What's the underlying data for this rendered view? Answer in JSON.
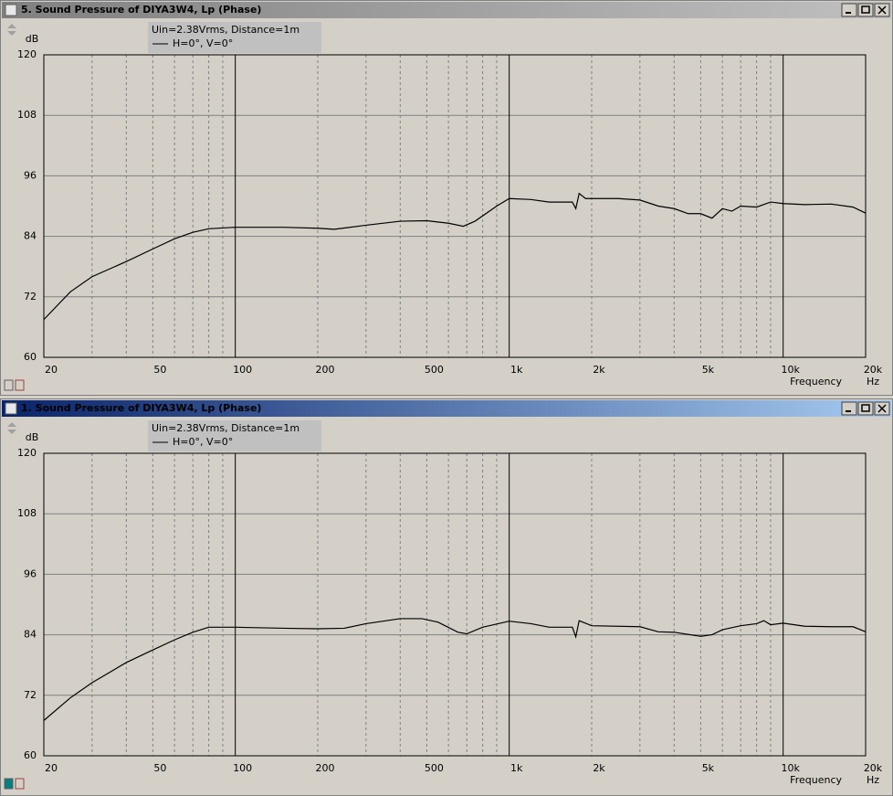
{
  "chart_data": [
    {
      "type": "line",
      "title": "5. Sound Pressure of DIYA3W4, Lp (Phase)",
      "active": false,
      "annotation": "Uin=2.38Vrms, Distance=1m",
      "y_label": "dB",
      "x_label": "Frequency",
      "x_unit": "Hz",
      "x_scale": "log",
      "grid": true,
      "xlim": [
        20,
        20000
      ],
      "ylim": [
        60,
        120
      ],
      "yticks": [
        60,
        72,
        84,
        96,
        108,
        120
      ],
      "xticks": [
        20,
        50,
        100,
        200,
        500,
        {
          "value": 1000,
          "label": "1k"
        },
        {
          "value": 2000,
          "label": "2k"
        },
        {
          "value": 5000,
          "label": "5k"
        },
        {
          "value": 10000,
          "label": "10k"
        },
        {
          "value": 20000,
          "label": "20k"
        }
      ],
      "xgrid": [
        30,
        40,
        60,
        70,
        80,
        90,
        300,
        400,
        600,
        700,
        800,
        900,
        3000,
        4000,
        6000,
        7000,
        8000,
        9000
      ],
      "x": [
        20,
        25,
        30,
        40,
        50,
        60,
        70,
        80,
        100,
        150,
        200,
        230,
        300,
        400,
        500,
        600,
        680,
        750,
        900,
        1000,
        1200,
        1400,
        1700,
        1750,
        1800,
        1900,
        2500,
        3000,
        3500,
        4000,
        4500,
        5000,
        5500,
        6000,
        6500,
        7000,
        8000,
        9000,
        10000,
        12000,
        15000,
        18000,
        20000
      ],
      "series": [
        {
          "name": "H=0°, V=0°",
          "color": "#000000",
          "values": [
            67.5,
            73,
            76,
            79,
            81.5,
            83.5,
            84.8,
            85.5,
            85.8,
            85.8,
            85.6,
            85.4,
            86.2,
            87,
            87.1,
            86.6,
            86,
            87,
            90,
            91.5,
            91.3,
            90.8,
            90.8,
            89.5,
            92.5,
            91.5,
            91.5,
            91.2,
            90,
            89.5,
            88.5,
            88.5,
            87.6,
            89.5,
            89,
            90,
            89.8,
            90.8,
            90.5,
            90.3,
            90.4,
            89.8,
            88.6
          ]
        }
      ]
    },
    {
      "type": "line",
      "title": "1. Sound Pressure of DIYA3W4, Lp (Phase)",
      "active": true,
      "annotation": "Uin=2.38Vrms, Distance=1m",
      "y_label": "dB",
      "x_label": "Frequency",
      "x_unit": "Hz",
      "x_scale": "log",
      "grid": true,
      "xlim": [
        20,
        20000
      ],
      "ylim": [
        60,
        120
      ],
      "yticks": [
        60,
        72,
        84,
        96,
        108,
        120
      ],
      "xticks": [
        20,
        50,
        100,
        200,
        500,
        {
          "value": 1000,
          "label": "1k"
        },
        {
          "value": 2000,
          "label": "2k"
        },
        {
          "value": 5000,
          "label": "5k"
        },
        {
          "value": 10000,
          "label": "10k"
        },
        {
          "value": 20000,
          "label": "20k"
        }
      ],
      "xgrid": [
        30,
        40,
        60,
        70,
        80,
        90,
        300,
        400,
        600,
        700,
        800,
        900,
        3000,
        4000,
        6000,
        7000,
        8000,
        9000
      ],
      "x": [
        20,
        25,
        30,
        40,
        50,
        60,
        70,
        80,
        100,
        150,
        200,
        250,
        300,
        400,
        480,
        550,
        650,
        700,
        800,
        1000,
        1200,
        1400,
        1700,
        1750,
        1800,
        2000,
        3000,
        3500,
        4000,
        5000,
        5500,
        6000,
        7000,
        8000,
        8500,
        9000,
        10000,
        12000,
        15000,
        18000,
        20000
      ],
      "series": [
        {
          "name": "H=0°, V=0°",
          "color": "#000000",
          "values": [
            67,
            71.5,
            74.5,
            78.5,
            81,
            83,
            84.5,
            85.5,
            85.5,
            85.3,
            85.2,
            85.3,
            86.2,
            87.2,
            87.2,
            86.5,
            84.5,
            84.2,
            85.5,
            86.7,
            86.2,
            85.5,
            85.5,
            83.6,
            86.8,
            85.8,
            85.6,
            84.6,
            84.5,
            83.7,
            84,
            85,
            85.8,
            86.2,
            86.8,
            86,
            86.3,
            85.7,
            85.6,
            85.6,
            84.6
          ]
        }
      ]
    }
  ]
}
